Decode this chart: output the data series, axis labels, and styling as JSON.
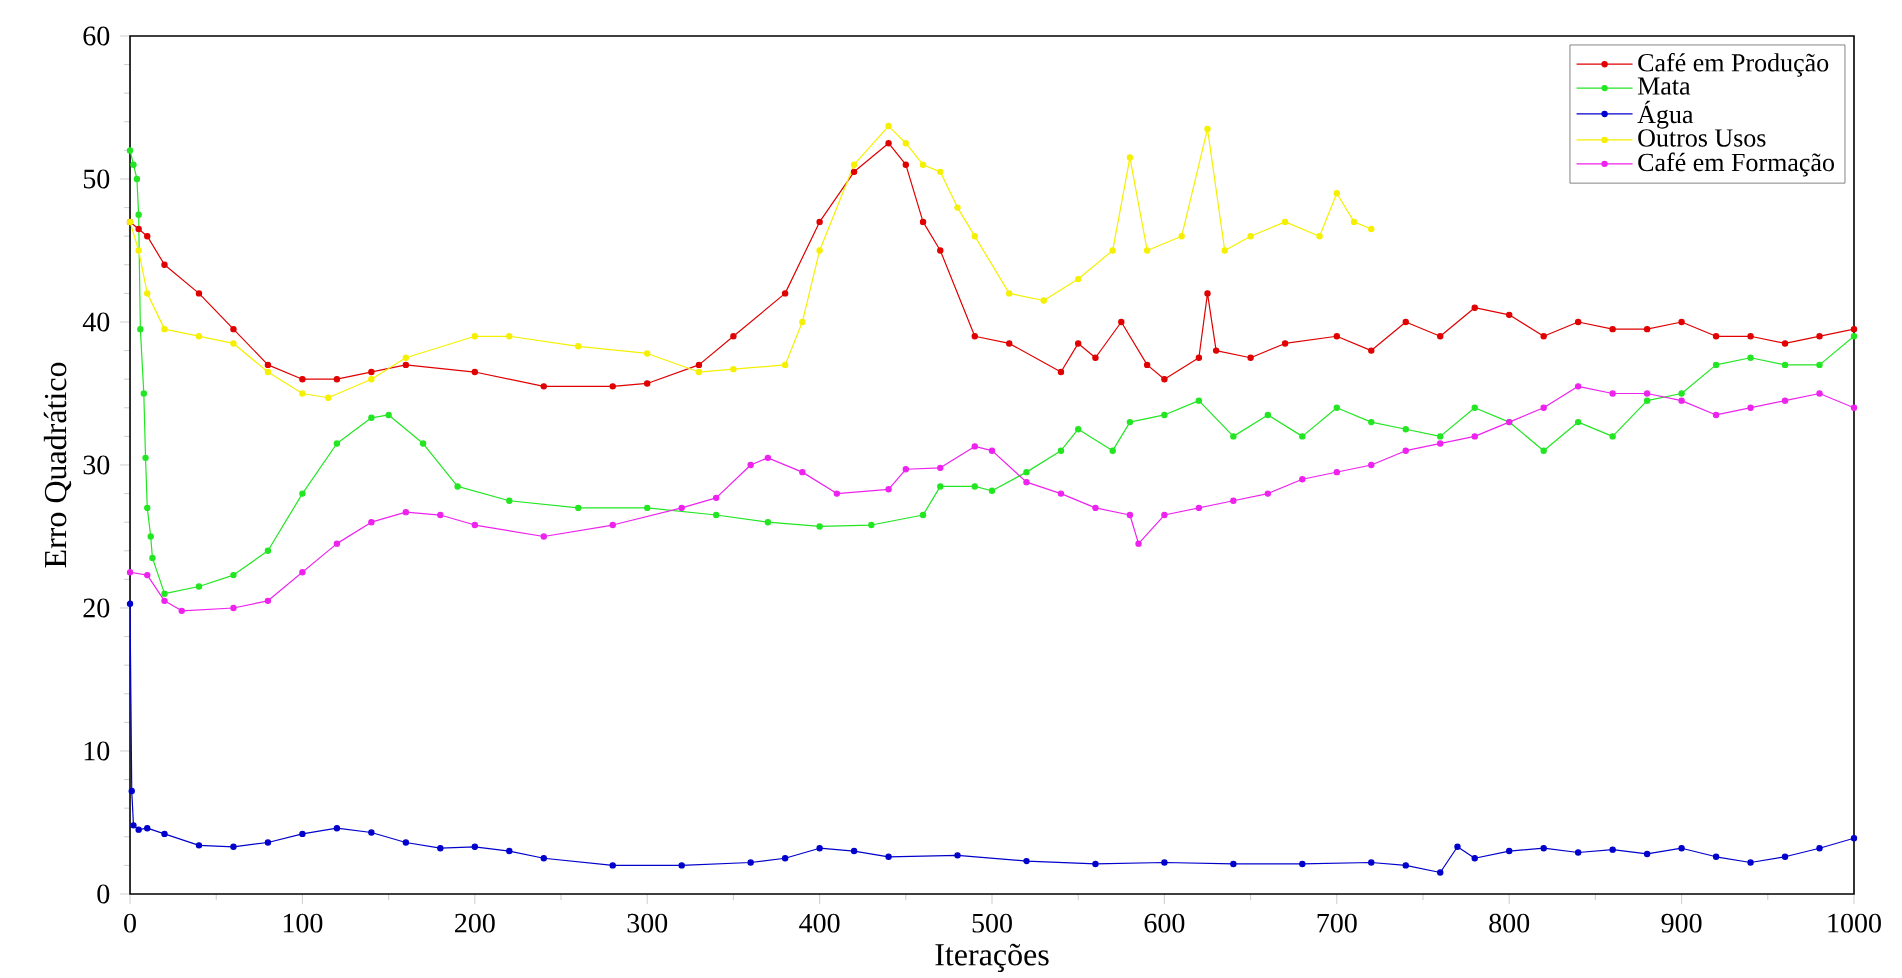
{
  "chart_data": {
    "type": "line",
    "xlabel": "Iterações",
    "ylabel": "Erro Quadrático",
    "xlim": [
      0,
      1000
    ],
    "ylim": [
      0,
      60
    ],
    "xticks": [
      0,
      100,
      200,
      300,
      400,
      500,
      600,
      700,
      800,
      900,
      1000
    ],
    "yticks": [
      0,
      10,
      20,
      30,
      40,
      50,
      60
    ],
    "legend": "top right",
    "marker": "circle",
    "line_style": "solid",
    "grid": false,
    "series": [
      {
        "name": "Café em Produção",
        "color": "#e00000",
        "x": [
          0,
          5,
          10,
          20,
          40,
          60,
          80,
          100,
          120,
          140,
          160,
          200,
          240,
          280,
          300,
          330,
          350,
          380,
          400,
          420,
          440,
          450,
          460,
          470,
          490,
          510,
          540,
          550,
          560,
          575,
          590,
          600,
          620,
          625,
          630,
          650,
          670,
          700,
          720,
          740,
          760,
          780,
          800,
          820,
          840,
          860,
          880,
          900,
          920,
          940,
          960,
          980,
          1000
        ],
        "values": [
          47,
          46.5,
          46,
          44,
          42,
          39.5,
          37,
          36,
          36,
          36.5,
          37,
          36.5,
          35.5,
          35.5,
          35.7,
          37,
          39,
          42,
          47,
          50.5,
          52.5,
          51,
          47,
          45,
          39,
          38.5,
          36.5,
          38.5,
          37.5,
          40,
          37,
          36,
          37.5,
          42,
          38,
          37.5,
          38.5,
          39,
          38,
          40,
          39,
          41,
          40.5,
          39,
          40,
          39.5,
          39.5,
          40,
          39,
          39,
          38.5,
          39,
          39.5
        ]
      },
      {
        "name": "Mata",
        "color": "#22e622",
        "x": [
          0,
          2,
          4,
          5,
          6,
          8,
          9,
          10,
          12,
          13,
          20,
          40,
          60,
          80,
          100,
          120,
          140,
          150,
          170,
          190,
          220,
          260,
          300,
          340,
          370,
          400,
          430,
          460,
          470,
          490,
          500,
          520,
          540,
          550,
          570,
          580,
          600,
          620,
          640,
          660,
          680,
          700,
          720,
          740,
          760,
          780,
          800,
          820,
          840,
          860,
          880,
          900,
          920,
          940,
          960,
          980,
          1000
        ],
        "values": [
          52,
          51,
          50,
          47.5,
          39.5,
          35,
          30.5,
          27,
          25,
          23.5,
          21,
          21.5,
          22.3,
          24,
          28,
          31.5,
          33.3,
          33.5,
          31.5,
          28.5,
          27.5,
          27,
          27,
          26.5,
          26,
          25.7,
          25.8,
          26.5,
          28.5,
          28.5,
          28.2,
          29.5,
          31,
          32.5,
          31,
          33,
          33.5,
          34.5,
          32,
          33.5,
          32,
          34,
          33,
          32.5,
          32,
          34,
          33,
          31,
          33,
          32,
          34.5,
          35,
          37,
          37.5,
          37,
          37,
          39
        ]
      },
      {
        "name": "Água",
        "color": "#0000cc",
        "x": [
          0,
          1,
          2,
          5,
          10,
          20,
          40,
          60,
          80,
          100,
          120,
          140,
          160,
          180,
          200,
          220,
          240,
          280,
          320,
          360,
          380,
          400,
          420,
          440,
          480,
          520,
          560,
          600,
          640,
          680,
          720,
          740,
          760,
          770,
          780,
          800,
          820,
          840,
          860,
          880,
          900,
          920,
          940,
          960,
          980,
          1000
        ],
        "values": [
          20.3,
          7.2,
          4.8,
          4.5,
          4.6,
          4.2,
          3.4,
          3.3,
          3.6,
          4.2,
          4.6,
          4.3,
          3.6,
          3.2,
          3.3,
          3,
          2.5,
          2,
          2,
          2.2,
          2.5,
          3.2,
          3,
          2.6,
          2.7,
          2.3,
          2.1,
          2.2,
          2.1,
          2.1,
          2.2,
          2,
          1.5,
          3.3,
          2.5,
          3,
          3.2,
          2.9,
          3.1,
          2.8,
          3.2,
          2.6,
          2.2,
          2.6,
          3.2,
          3.9
        ]
      },
      {
        "name": "Outros Usos",
        "color": "#f5f000",
        "x": [
          0,
          5,
          10,
          20,
          40,
          60,
          80,
          100,
          115,
          140,
          160,
          200,
          220,
          260,
          300,
          330,
          350,
          380,
          390,
          400,
          420,
          440,
          450,
          460,
          470,
          480,
          490,
          510,
          530,
          550,
          570,
          580,
          590,
          610,
          625,
          635,
          650,
          670,
          690,
          700,
          710,
          720
        ],
        "values": [
          47,
          45,
          42,
          39.5,
          39,
          38.5,
          36.5,
          35,
          34.7,
          36,
          37.5,
          39,
          39,
          38.3,
          37.8,
          36.5,
          36.7,
          37,
          40,
          45,
          51,
          53.7,
          52.5,
          51,
          50.5,
          48,
          46,
          42,
          41.5,
          43,
          45,
          51.5,
          45,
          46,
          53.5,
          45,
          46,
          47,
          46,
          49,
          47,
          46.5
        ]
      },
      {
        "name": "Café em Formação",
        "color": "#ee22ee",
        "x": [
          0,
          10,
          20,
          30,
          60,
          80,
          100,
          120,
          140,
          160,
          180,
          200,
          240,
          280,
          320,
          340,
          360,
          370,
          390,
          410,
          440,
          450,
          470,
          490,
          500,
          520,
          540,
          560,
          580,
          585,
          600,
          620,
          640,
          660,
          680,
          700,
          720,
          740,
          760,
          780,
          800,
          820,
          840,
          860,
          880,
          900,
          920,
          940,
          960,
          980,
          1000
        ],
        "values": [
          22.5,
          22.3,
          20.5,
          19.8,
          20,
          20.5,
          22.5,
          24.5,
          26,
          26.7,
          26.5,
          25.8,
          25,
          25.8,
          27,
          27.7,
          30,
          30.5,
          29.5,
          28,
          28.3,
          29.7,
          29.8,
          31.3,
          31,
          28.8,
          28,
          27,
          26.5,
          24.5,
          26.5,
          27,
          27.5,
          28,
          29,
          29.5,
          30,
          31,
          31.5,
          32,
          33,
          34,
          35.5,
          35,
          35,
          34.5,
          33.5,
          34,
          34.5,
          35,
          34
        ]
      }
    ]
  }
}
